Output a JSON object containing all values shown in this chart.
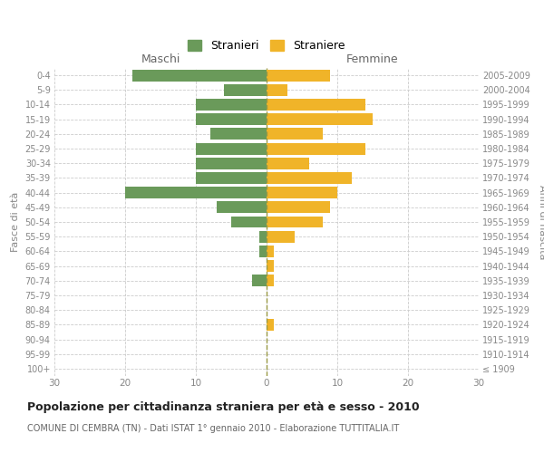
{
  "age_groups": [
    "100+",
    "95-99",
    "90-94",
    "85-89",
    "80-84",
    "75-79",
    "70-74",
    "65-69",
    "60-64",
    "55-59",
    "50-54",
    "45-49",
    "40-44",
    "35-39",
    "30-34",
    "25-29",
    "20-24",
    "15-19",
    "10-14",
    "5-9",
    "0-4"
  ],
  "birth_years": [
    "≤ 1909",
    "1910-1914",
    "1915-1919",
    "1920-1924",
    "1925-1929",
    "1930-1934",
    "1935-1939",
    "1940-1944",
    "1945-1949",
    "1950-1954",
    "1955-1959",
    "1960-1964",
    "1965-1969",
    "1970-1974",
    "1975-1979",
    "1980-1984",
    "1985-1989",
    "1990-1994",
    "1995-1999",
    "2000-2004",
    "2005-2009"
  ],
  "males": [
    0,
    0,
    0,
    0,
    0,
    0,
    2,
    0,
    1,
    1,
    5,
    7,
    20,
    10,
    10,
    10,
    8,
    10,
    10,
    6,
    19
  ],
  "females": [
    0,
    0,
    0,
    1,
    0,
    0,
    1,
    1,
    1,
    4,
    8,
    9,
    10,
    12,
    6,
    14,
    8,
    15,
    14,
    3,
    9
  ],
  "male_color": "#6a9a5a",
  "female_color": "#f0b429",
  "background_color": "#ffffff",
  "grid_color": "#cccccc",
  "title": "Popolazione per cittadinanza straniera per età e sesso - 2010",
  "subtitle": "COMUNE DI CEMBRA (TN) - Dati ISTAT 1° gennaio 2010 - Elaborazione TUTTITALIA.IT",
  "xlabel_left": "Maschi",
  "xlabel_right": "Femmine",
  "ylabel_left": "Fasce di età",
  "ylabel_right": "Anni di nascita",
  "legend_male": "Stranieri",
  "legend_female": "Straniere",
  "xlim": 30,
  "bar_height": 0.8
}
